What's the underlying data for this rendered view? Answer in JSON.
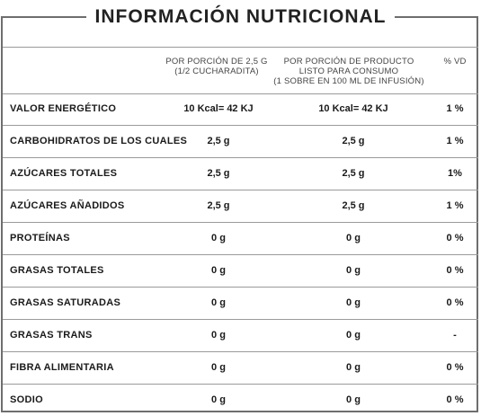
{
  "title": "INFORMACIÓN NUTRICIONAL",
  "headers": {
    "per_portion": [
      "POR PORCIÓN DE 2,5 G",
      "(1/2 CUCHARADITA)"
    ],
    "per_ready": [
      "POR PORCIÓN DE PRODUCTO",
      "LISTO PARA CONSUMO",
      "(1 SOBRE EN 100 ML DE INFUSIÓN)"
    ],
    "vd": "% VD"
  },
  "rows": [
    {
      "name": "VALOR ENERGÉTICO",
      "portion": "10 Kcal= 42 KJ",
      "ready": "10 Kcal= 42 KJ",
      "vd": "1 %"
    },
    {
      "name": "CARBOHIDRATOS DE LOS CUALES",
      "portion": "2,5 g",
      "ready": "2,5 g",
      "vd": "1 %"
    },
    {
      "name": "AZÚCARES TOTALES",
      "portion": "2,5 g",
      "ready": "2,5 g",
      "vd": "1%"
    },
    {
      "name": "AZÚCARES AÑADIDOS",
      "portion": "2,5 g",
      "ready": "2,5 g",
      "vd": "1 %"
    },
    {
      "name": "PROTEÍNAS",
      "portion": "0 g",
      "ready": "0 g",
      "vd": "0 %"
    },
    {
      "name": "GRASAS TOTALES",
      "portion": "0 g",
      "ready": "0 g",
      "vd": "0 %"
    },
    {
      "name": "GRASAS SATURADAS",
      "portion": "0 g",
      "ready": "0 g",
      "vd": "0 %"
    },
    {
      "name": "GRASAS TRANS",
      "portion": "0 g",
      "ready": "0 g",
      "vd": "-"
    },
    {
      "name": "FIBRA ALIMENTARIA",
      "portion": "0 g",
      "ready": "0 g",
      "vd": "0 %"
    },
    {
      "name": "SODIO",
      "portion": "0 g",
      "ready": "0 g",
      "vd": "0 %"
    }
  ]
}
